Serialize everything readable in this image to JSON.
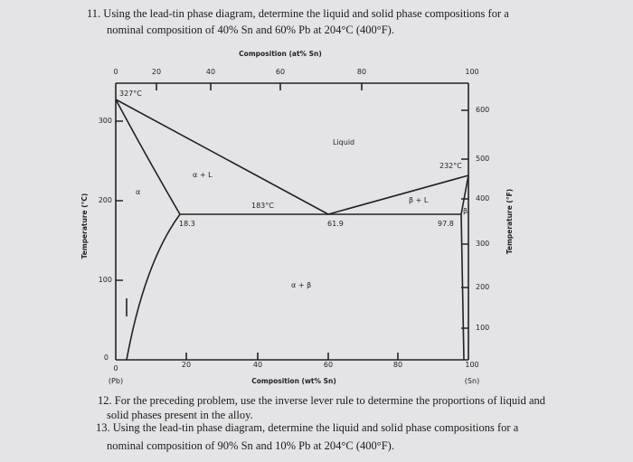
{
  "questions": [
    {
      "lines": [
        "11. Using the lead-tin phase diagram, determine the liquid and solid phase compositions for a",
        "nominal composition of 40% Sn and 60% Pb at 204°C (400°F)."
      ]
    },
    {
      "lines": [
        "12. For the preceding problem, use the inverse lever rule to determine the proportions of liquid and",
        "solid phases present in the alloy."
      ]
    },
    {
      "lines": [
        "13. Using the lead-tin phase diagram, determine the liquid and solid phase compositions for a",
        "nominal composition of 90% Sn and 10% Pb at 204°C (400°F)."
      ]
    }
  ],
  "figure": {
    "top_axis": {
      "title": "Composition (at% Sn)",
      "ticks": [
        "0",
        "20",
        "40",
        "60",
        "80",
        "100"
      ]
    },
    "bottom_axis": {
      "title": "Composition (wt% Sn)",
      "ticks": [
        "0",
        "20",
        "40",
        "60",
        "80",
        "100"
      ],
      "left_end": "(Pb)",
      "right_end": "(Sn)"
    },
    "left_axis": {
      "title": "Temperature (°C)",
      "ticks": [
        "0",
        "100",
        "200",
        "300"
      ]
    },
    "right_axis": {
      "title": "Temperature (°F)",
      "ticks": [
        "100",
        "200",
        "300",
        "400",
        "500",
        "600"
      ]
    },
    "labels": {
      "pb_melt": "327°C",
      "sn_melt": "232°C",
      "eutectic_temp": "183°C",
      "alpha_limit": "18.3",
      "eutectic_comp": "61.9",
      "beta_limit": "97.8",
      "liquid": "Liquid",
      "alpha_liquid": "α + L",
      "beta_liquid": "β + L",
      "alpha": "α",
      "beta": "β",
      "alpha_beta": "α + β"
    }
  }
}
